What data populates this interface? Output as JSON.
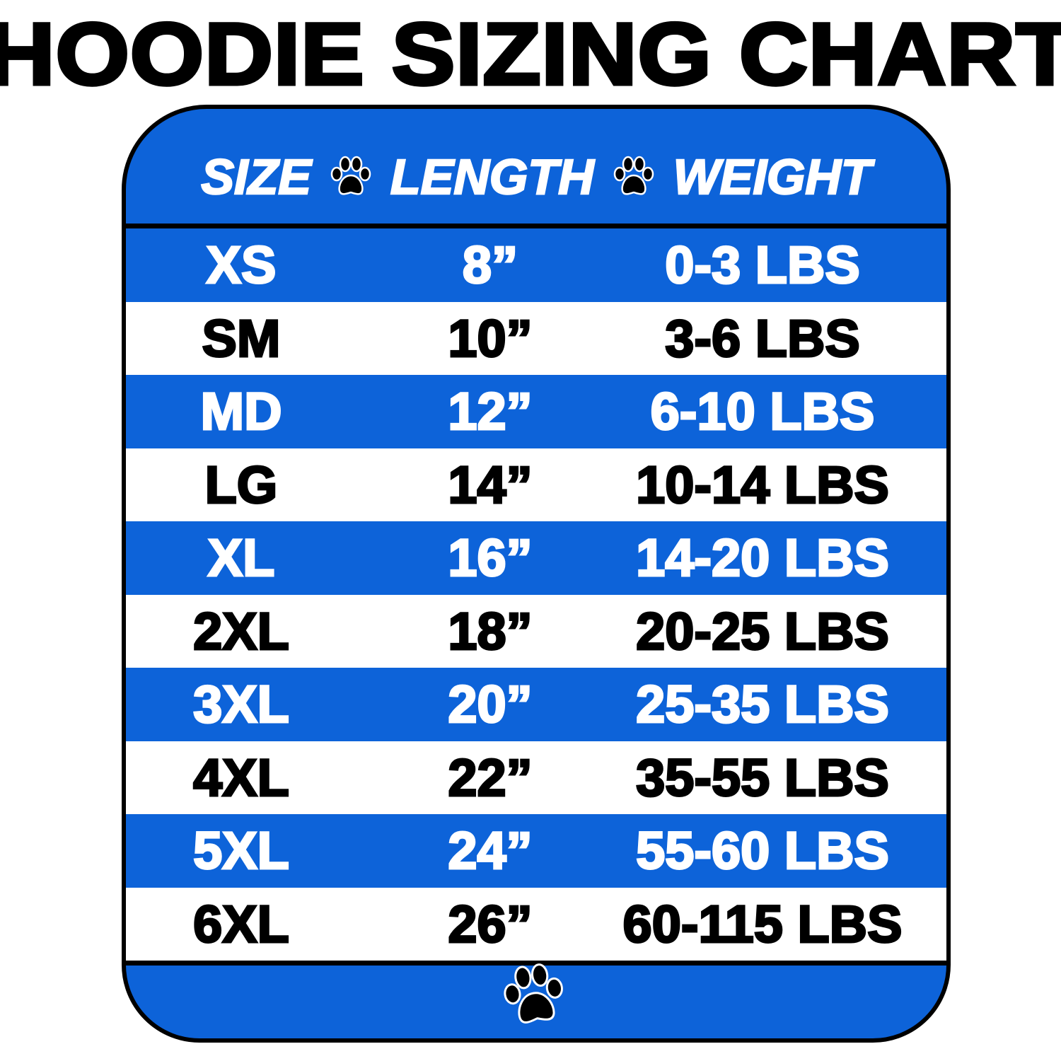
{
  "title": "HOODIE SIZING CHART",
  "colors": {
    "accent": "#0d63d9",
    "text_dark": "#000000",
    "text_light": "#ffffff"
  },
  "header": {
    "columns": [
      "SIZE",
      "LENGTH",
      "WEIGHT"
    ],
    "separator_icon": "paw-icon"
  },
  "rows": [
    {
      "size": "XS",
      "length": "8”",
      "weight": "0-3 LBS"
    },
    {
      "size": "SM",
      "length": "10”",
      "weight": "3-6 LBS"
    },
    {
      "size": "MD",
      "length": "12”",
      "weight": "6-10 LBS"
    },
    {
      "size": "LG",
      "length": "14”",
      "weight": "10-14 LBS"
    },
    {
      "size": "XL",
      "length": "16”",
      "weight": "14-20 LBS"
    },
    {
      "size": "2XL",
      "length": "18”",
      "weight": "20-25 LBS"
    },
    {
      "size": "3XL",
      "length": "20”",
      "weight": "25-35 LBS"
    },
    {
      "size": "4XL",
      "length": "22”",
      "weight": "35-55 LBS"
    },
    {
      "size": "5XL",
      "length": "24”",
      "weight": "55-60 LBS"
    },
    {
      "size": "6XL",
      "length": "26”",
      "weight": "60-115 LBS"
    }
  ],
  "footer": {
    "icon": "paw-icon"
  }
}
